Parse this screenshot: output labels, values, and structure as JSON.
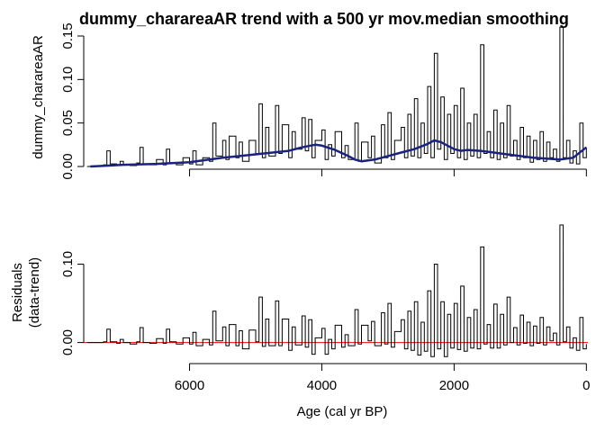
{
  "chart_data": [
    {
      "type": "line",
      "title": "dummy_charareaAR trend with a 500 yr mov.median smoothing",
      "ylabel": "dummy_charareaAR",
      "xlim": [
        7600,
        -50
      ],
      "ylim": [
        0,
        0.15
      ],
      "yticks": [
        0.0,
        0.05,
        0.1,
        0.15
      ],
      "ytick_labels": [
        "0.00",
        "0.05",
        "0.10",
        "0.15"
      ],
      "xticks": [
        6000,
        4000,
        2000,
        0
      ],
      "series": [
        {
          "role": "data",
          "color": "#000000",
          "x": [
            7550,
            7300,
            7250,
            7200,
            7100,
            7050,
            7000,
            6900,
            6800,
            6750,
            6700,
            6600,
            6500,
            6400,
            6350,
            6300,
            6200,
            6100,
            6000,
            5950,
            5900,
            5800,
            5700,
            5650,
            5600,
            5500,
            5450,
            5400,
            5300,
            5250,
            5200,
            5100,
            5000,
            4950,
            4900,
            4850,
            4800,
            4700,
            4650,
            4600,
            4500,
            4450,
            4400,
            4300,
            4250,
            4200,
            4150,
            4100,
            4000,
            3950,
            3900,
            3850,
            3800,
            3700,
            3650,
            3600,
            3500,
            3450,
            3400,
            3300,
            3250,
            3200,
            3100,
            3050,
            3000,
            2950,
            2900,
            2800,
            2750,
            2700,
            2650,
            2600,
            2550,
            2500,
            2450,
            2400,
            2350,
            2300,
            2250,
            2200,
            2150,
            2100,
            2050,
            2000,
            1950,
            1900,
            1850,
            1800,
            1750,
            1700,
            1650,
            1600,
            1550,
            1500,
            1450,
            1400,
            1350,
            1300,
            1250,
            1200,
            1150,
            1100,
            1050,
            1000,
            950,
            900,
            850,
            800,
            750,
            700,
            650,
            600,
            550,
            500,
            450,
            400,
            350,
            300,
            250,
            200,
            150,
            100,
            50,
            0
          ],
          "y": [
            0.0,
            0.002,
            0.018,
            0.003,
            0.001,
            0.006,
            0.002,
            0.001,
            0.004,
            0.022,
            0.003,
            0.002,
            0.008,
            0.002,
            0.02,
            0.004,
            0.002,
            0.01,
            0.003,
            0.018,
            0.002,
            0.01,
            0.006,
            0.05,
            0.012,
            0.03,
            0.008,
            0.035,
            0.01,
            0.028,
            0.006,
            0.03,
            0.015,
            0.072,
            0.01,
            0.045,
            0.012,
            0.07,
            0.015,
            0.048,
            0.01,
            0.04,
            0.02,
            0.056,
            0.018,
            0.054,
            0.01,
            0.03,
            0.042,
            0.008,
            0.025,
            0.012,
            0.04,
            0.01,
            0.024,
            0.008,
            0.05,
            0.006,
            0.028,
            0.01,
            0.035,
            0.004,
            0.048,
            0.01,
            0.062,
            0.008,
            0.03,
            0.045,
            0.01,
            0.06,
            0.012,
            0.078,
            0.01,
            0.05,
            0.015,
            0.092,
            0.01,
            0.13,
            0.02,
            0.08,
            0.008,
            0.06,
            0.015,
            0.07,
            0.01,
            0.09,
            0.008,
            0.05,
            0.012,
            0.06,
            0.01,
            0.14,
            0.015,
            0.04,
            0.01,
            0.065,
            0.008,
            0.05,
            0.01,
            0.07,
            0.012,
            0.03,
            0.008,
            0.045,
            0.01,
            0.035,
            0.005,
            0.03,
            0.008,
            0.04,
            0.006,
            0.028,
            0.01,
            0.02,
            0.006,
            0.16,
            0.01,
            0.03,
            0.004,
            0.018,
            0.003,
            0.05,
            0.01,
            0.022
          ]
        },
        {
          "role": "trend",
          "name": "",
          "color": "#1a237e",
          "x": [
            7500,
            7000,
            6500,
            6000,
            5500,
            5000,
            4500,
            4300,
            4100,
            4000,
            3800,
            3600,
            3500,
            3400,
            3200,
            3000,
            2800,
            2600,
            2400,
            2300,
            2200,
            2100,
            2000,
            1900,
            1800,
            1600,
            1400,
            1200,
            1000,
            800,
            600,
            400,
            200,
            0
          ],
          "y": [
            0.0,
            0.002,
            0.003,
            0.005,
            0.01,
            0.014,
            0.018,
            0.022,
            0.025,
            0.024,
            0.019,
            0.012,
            0.008,
            0.006,
            0.008,
            0.012,
            0.016,
            0.02,
            0.026,
            0.03,
            0.028,
            0.024,
            0.02,
            0.018,
            0.019,
            0.018,
            0.016,
            0.014,
            0.012,
            0.01,
            0.009,
            0.008,
            0.01,
            0.022
          ]
        }
      ]
    },
    {
      "type": "line",
      "ylabel": "Residuals",
      "ylabel2": "(data-trend)",
      "xlabel": "Age (cal yr BP)",
      "xlim": [
        7600,
        -50
      ],
      "ylim": [
        -0.02,
        0.15
      ],
      "yticks": [
        0.0,
        0.1
      ],
      "ytick_labels": [
        "0.00",
        "0.10"
      ],
      "xticks": [
        6000,
        4000,
        2000,
        0
      ],
      "xtick_labels": [
        "6000",
        "4000",
        "2000",
        "0"
      ],
      "zero_line_color": "#ff0000",
      "series": [
        {
          "role": "residuals",
          "color": "#000000",
          "x": [
            7550,
            7300,
            7250,
            7200,
            7100,
            7050,
            7000,
            6900,
            6800,
            6750,
            6700,
            6600,
            6500,
            6400,
            6350,
            6300,
            6200,
            6100,
            6000,
            5950,
            5900,
            5800,
            5700,
            5650,
            5600,
            5500,
            5450,
            5400,
            5300,
            5250,
            5200,
            5100,
            5000,
            4950,
            4900,
            4850,
            4800,
            4700,
            4650,
            4600,
            4500,
            4450,
            4400,
            4300,
            4250,
            4200,
            4150,
            4100,
            4000,
            3950,
            3900,
            3850,
            3800,
            3700,
            3650,
            3600,
            3500,
            3450,
            3400,
            3300,
            3250,
            3200,
            3100,
            3050,
            3000,
            2950,
            2900,
            2800,
            2750,
            2700,
            2650,
            2600,
            2550,
            2500,
            2450,
            2400,
            2350,
            2300,
            2250,
            2200,
            2150,
            2100,
            2050,
            2000,
            1950,
            1900,
            1850,
            1800,
            1750,
            1700,
            1650,
            1600,
            1550,
            1500,
            1450,
            1400,
            1350,
            1300,
            1250,
            1200,
            1150,
            1100,
            1050,
            1000,
            950,
            900,
            850,
            800,
            750,
            700,
            650,
            600,
            550,
            500,
            450,
            400,
            350,
            300,
            250,
            200,
            150,
            100,
            50,
            0
          ],
          "y": [
            0.0,
            0.001,
            0.017,
            0.001,
            -0.001,
            0.004,
            0.0,
            -0.002,
            0.001,
            0.019,
            0.0,
            -0.001,
            0.005,
            -0.001,
            0.017,
            0.001,
            -0.002,
            0.006,
            -0.002,
            0.013,
            -0.004,
            0.004,
            -0.003,
            0.04,
            0.002,
            0.02,
            -0.004,
            0.023,
            -0.004,
            0.015,
            -0.008,
            0.016,
            0.001,
            0.058,
            -0.005,
            0.03,
            -0.004,
            0.053,
            -0.004,
            0.03,
            -0.01,
            0.02,
            -0.003,
            0.034,
            -0.006,
            0.029,
            -0.015,
            0.006,
            0.018,
            -0.015,
            0.004,
            -0.008,
            0.022,
            -0.006,
            0.01,
            -0.004,
            0.042,
            -0.002,
            0.022,
            0.002,
            0.027,
            -0.004,
            0.038,
            -0.002,
            0.05,
            -0.006,
            0.014,
            0.029,
            -0.008,
            0.04,
            -0.01,
            0.052,
            -0.016,
            0.026,
            -0.011,
            0.066,
            -0.018,
            0.1,
            -0.008,
            0.052,
            -0.018,
            0.036,
            -0.007,
            0.05,
            -0.009,
            0.072,
            -0.011,
            0.032,
            -0.007,
            0.042,
            -0.008,
            0.122,
            -0.002,
            0.023,
            -0.007,
            0.049,
            -0.007,
            0.036,
            -0.003,
            0.058,
            0.0,
            0.019,
            -0.003,
            0.035,
            -0.001,
            0.026,
            -0.004,
            0.021,
            -0.001,
            0.032,
            -0.003,
            0.02,
            0.002,
            0.012,
            -0.003,
            0.15,
            0.001,
            0.02,
            -0.007,
            0.006,
            -0.01,
            0.032,
            -0.008,
            -0.002
          ]
        }
      ]
    }
  ]
}
